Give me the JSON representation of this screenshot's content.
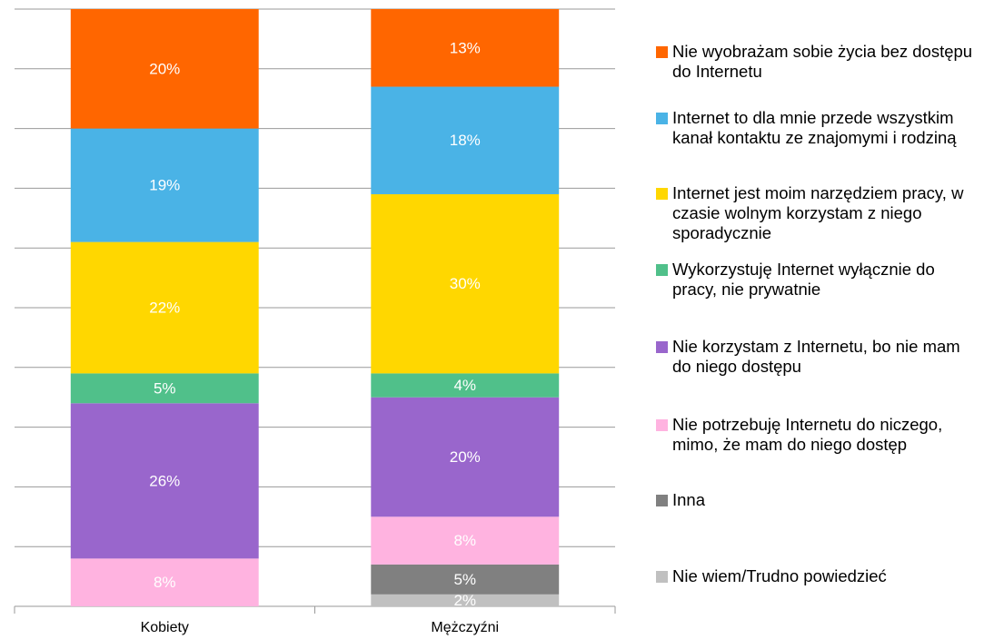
{
  "chart_data": {
    "type": "stacked_bar",
    "categories": [
      "Kobiety",
      "Mężczyźni"
    ],
    "ylim": [
      0,
      100
    ],
    "yticks": [
      0,
      10,
      20,
      30,
      40,
      50,
      60,
      70,
      80,
      90,
      100
    ],
    "grid": true,
    "legend": "right",
    "series": [
      {
        "name": "Nie wiem/Trudno powiedzieć",
        "color": "#c0c0c0",
        "values": [
          null,
          2
        ],
        "value_labels": [
          null,
          "2%"
        ]
      },
      {
        "name": "Inna",
        "color": "#808080",
        "values": [
          null,
          5
        ],
        "value_labels": [
          null,
          "5%"
        ]
      },
      {
        "name": "Nie potrzebuję Internetu do niczego, mimo, że mam do niego dostęp",
        "color": "#ffb3e0",
        "values": [
          8,
          8
        ],
        "value_labels": [
          "8%",
          "8%"
        ]
      },
      {
        "name": "Nie korzystam z Internetu, bo nie mam do niego dostępu",
        "color": "#9966cc",
        "values": [
          26,
          20
        ],
        "value_labels": [
          "26%",
          "20%"
        ]
      },
      {
        "name": "Wykorzystuję Internet wyłącznie do pracy, nie prywatnie",
        "color": "#50c08a",
        "values": [
          5,
          4
        ],
        "value_labels": [
          "5%",
          "4%"
        ]
      },
      {
        "name": "Internet jest moim narzędziem pracy, w czasie wolnym korzystam z niego sporadycznie",
        "color": "#ffd700",
        "values": [
          22,
          30
        ],
        "value_labels": [
          "22%",
          "30%"
        ]
      },
      {
        "name": "Internet to dla mnie przede wszystkim kanał kontaktu ze znajomymi i rodziną",
        "color": "#4ab3e6",
        "values": [
          19,
          18
        ],
        "value_labels": [
          "19%",
          "18%"
        ]
      },
      {
        "name": "Nie wyobrażam sobie życia bez dostępu do Internetu",
        "color": "#ff6600",
        "values": [
          20,
          13
        ],
        "value_labels": [
          "20%",
          "13%"
        ]
      }
    ]
  }
}
